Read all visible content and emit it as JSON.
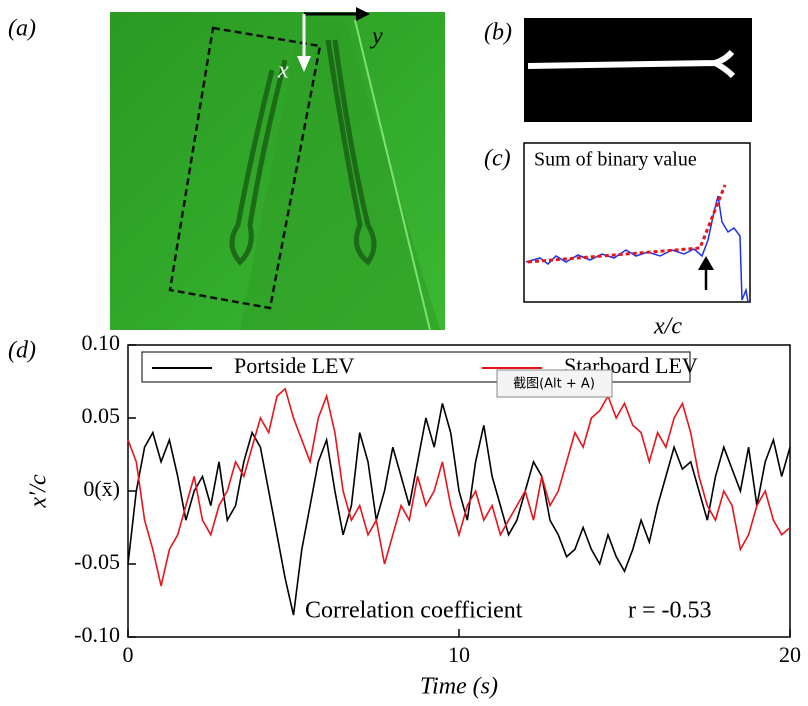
{
  "panels": {
    "a": {
      "label": "(a)",
      "x_label": "x",
      "y_label": "y"
    },
    "b": {
      "label": "(b)"
    },
    "c": {
      "label": "(c)",
      "title": "Sum of binary value",
      "x_label": "x/c"
    },
    "d": {
      "label": "(d)"
    }
  },
  "chart_data": {
    "type": "line",
    "x_label": "Time (s)",
    "y_label": "x′/c",
    "annotations": [
      "Correlation coefficient",
      "r = -0.53"
    ],
    "x": [
      0,
      0.25,
      0.5,
      0.75,
      1,
      1.25,
      1.5,
      1.75,
      2,
      2.25,
      2.5,
      2.75,
      3,
      3.25,
      3.5,
      3.75,
      4,
      4.25,
      4.5,
      4.75,
      5,
      5.25,
      5.5,
      5.75,
      6,
      6.25,
      6.5,
      6.75,
      7,
      7.25,
      7.5,
      7.75,
      8,
      8.25,
      8.5,
      8.75,
      9,
      9.25,
      9.5,
      9.75,
      10,
      10.25,
      10.5,
      10.75,
      11,
      11.25,
      11.5,
      11.75,
      12,
      12.25,
      12.5,
      12.75,
      13,
      13.25,
      13.5,
      13.75,
      14,
      14.25,
      14.5,
      14.75,
      15,
      15.25,
      15.5,
      15.75,
      16,
      16.25,
      16.5,
      16.75,
      17,
      17.25,
      17.5,
      17.75,
      18,
      18.25,
      18.5,
      18.75,
      19,
      19.25,
      19.5,
      19.75,
      20
    ],
    "series": [
      {
        "name": "Portside LEV",
        "color": "#000000",
        "values": [
          -0.05,
          0.0,
          0.03,
          0.04,
          0.02,
          0.035,
          0.01,
          -0.02,
          0.0,
          0.01,
          -0.01,
          0.02,
          -0.02,
          -0.01,
          0.02,
          0.04,
          0.03,
          0.0,
          -0.03,
          -0.06,
          -0.085,
          -0.04,
          -0.01,
          0.02,
          0.035,
          0.0,
          -0.03,
          -0.01,
          0.04,
          0.02,
          -0.02,
          0.0,
          0.03,
          0.01,
          -0.01,
          0.02,
          0.05,
          0.03,
          0.06,
          0.04,
          0.0,
          -0.02,
          0.02,
          0.045,
          0.01,
          -0.01,
          -0.03,
          -0.02,
          0.0,
          0.02,
          0.01,
          -0.02,
          -0.03,
          -0.045,
          -0.04,
          -0.025,
          -0.04,
          -0.05,
          -0.03,
          -0.045,
          -0.055,
          -0.04,
          -0.02,
          -0.035,
          -0.01,
          0.01,
          0.03,
          0.015,
          0.02,
          0.0,
          -0.02,
          0.01,
          0.03,
          0.015,
          0.0,
          0.03,
          -0.01,
          0.02,
          0.035,
          0.01,
          0.03
        ]
      },
      {
        "name": "Starboard LEV",
        "color": "#e8141c",
        "values": [
          0.035,
          0.02,
          -0.02,
          -0.04,
          -0.065,
          -0.04,
          -0.03,
          -0.01,
          0.01,
          -0.02,
          -0.03,
          -0.01,
          0.0,
          0.02,
          0.01,
          0.03,
          0.05,
          0.04,
          0.065,
          0.07,
          0.05,
          0.035,
          0.02,
          0.05,
          0.065,
          0.04,
          0.0,
          -0.02,
          -0.01,
          -0.03,
          -0.02,
          -0.05,
          -0.03,
          -0.01,
          -0.02,
          0.01,
          -0.01,
          0.0,
          0.02,
          -0.01,
          -0.03,
          -0.01,
          0.0,
          -0.02,
          -0.01,
          -0.03,
          -0.02,
          -0.01,
          0.0,
          -0.02,
          0.01,
          -0.01,
          0.0,
          0.02,
          0.04,
          0.03,
          0.05,
          0.055,
          0.065,
          0.05,
          0.06,
          0.045,
          0.04,
          0.02,
          0.04,
          0.03,
          0.05,
          0.06,
          0.04,
          0.01,
          -0.01,
          -0.02,
          0.0,
          -0.01,
          -0.04,
          -0.03,
          -0.01,
          0.0,
          -0.02,
          -0.03,
          -0.025
        ]
      }
    ],
    "xlim": [
      0,
      20
    ],
    "ylim": [
      -0.1,
      0.1
    ],
    "xticks": [
      0,
      10,
      20
    ],
    "yticks": [
      {
        "value": 0.1,
        "label": "0.10"
      },
      {
        "value": 0.05,
        "label": "0.05"
      },
      {
        "value": 0,
        "label": "0(x̄)"
      },
      {
        "value": -0.05,
        "label": "-0.05"
      },
      {
        "value": -0.1,
        "label": "-0.10"
      }
    ],
    "legend": "top"
  },
  "tooltip": "截图(Alt + A)"
}
